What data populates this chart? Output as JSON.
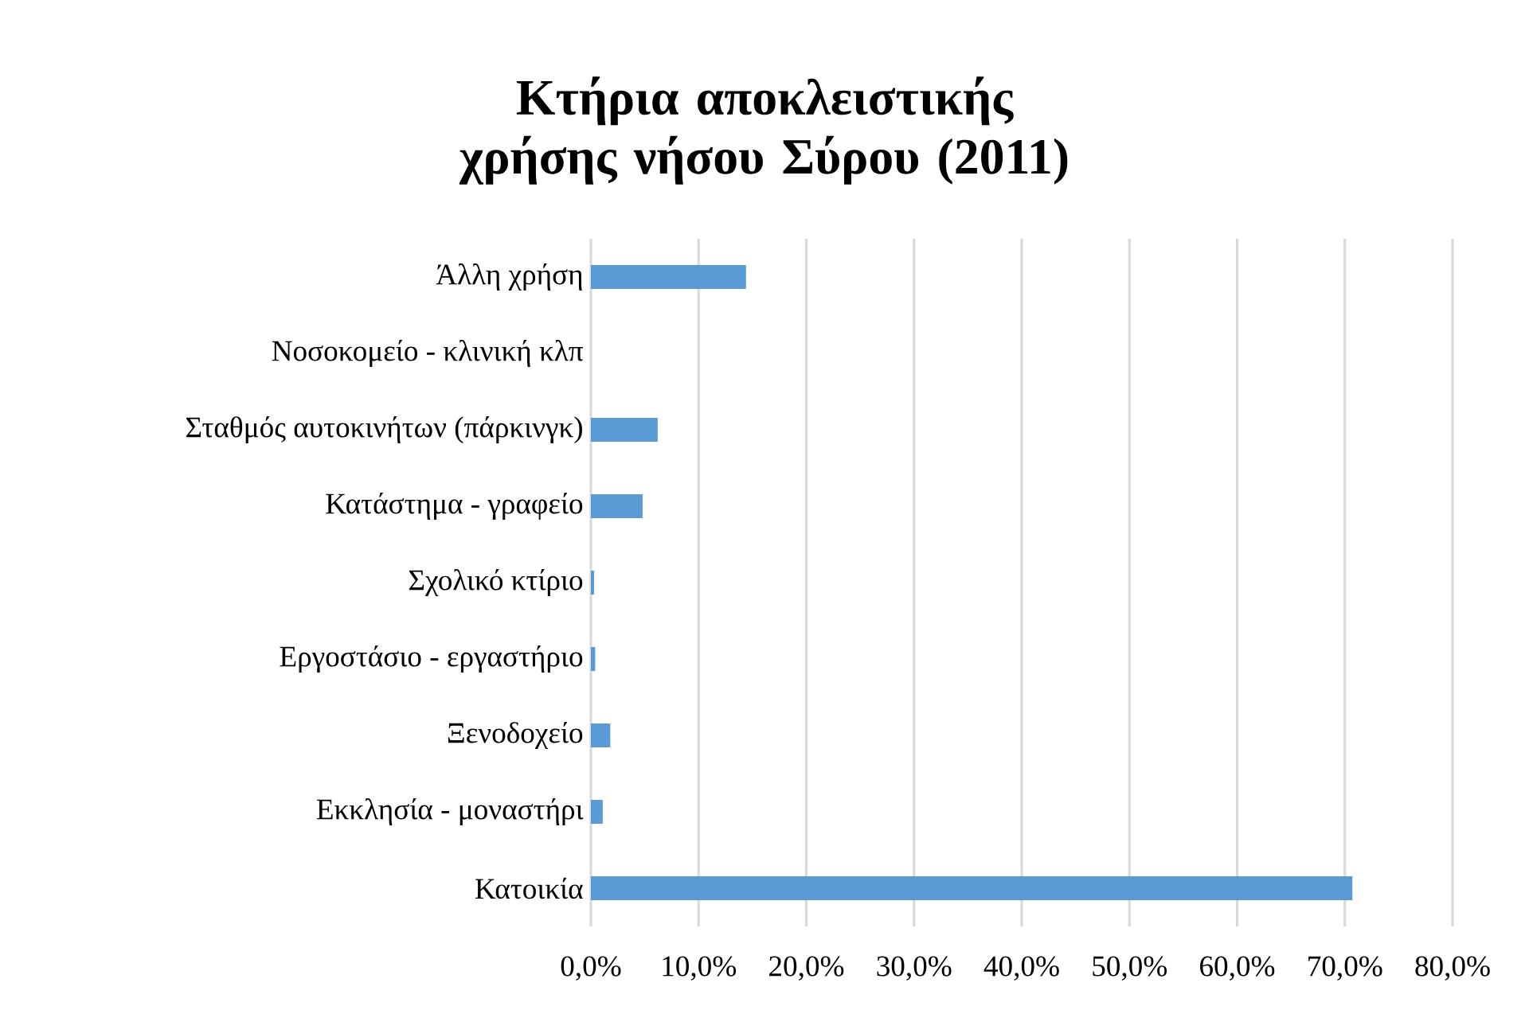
{
  "chart_data": {
    "type": "bar",
    "orientation": "horizontal",
    "title": "Κτήρια αποκλειστικής χρήσης νήσου Σύρου (2011)",
    "categories": [
      "Άλλη χρήση",
      "Νοσοκομείο - κλινική κλπ",
      "Σταθμός αυτοκινήτων (πάρκινγκ)",
      "Κατάστημα - γραφείο",
      "Σχολικό κτίριο",
      "Εργοστάσιο - εργαστήριο",
      "Ξενοδοχείο",
      "Εκκλησία - μοναστήρι",
      "Κατοικία"
    ],
    "values": [
      14.4,
      0,
      6.2,
      4.8,
      0.3,
      0.4,
      1.8,
      1.1,
      70.7
    ],
    "color": "#5b9bd5",
    "xlim": [
      0,
      80
    ],
    "xticks": [
      {
        "value": 0,
        "label": "0,0%"
      },
      {
        "value": 10,
        "label": "10,0%"
      },
      {
        "value": 20,
        "label": "20,0%"
      },
      {
        "value": 30,
        "label": "30,0%"
      },
      {
        "value": 40,
        "label": "40,0%"
      },
      {
        "value": 50,
        "label": "50,0%"
      },
      {
        "value": 60,
        "label": "60,0%"
      },
      {
        "value": 70,
        "label": "70,0%"
      },
      {
        "value": 80,
        "label": "80,0%"
      }
    ],
    "grid": "x"
  }
}
